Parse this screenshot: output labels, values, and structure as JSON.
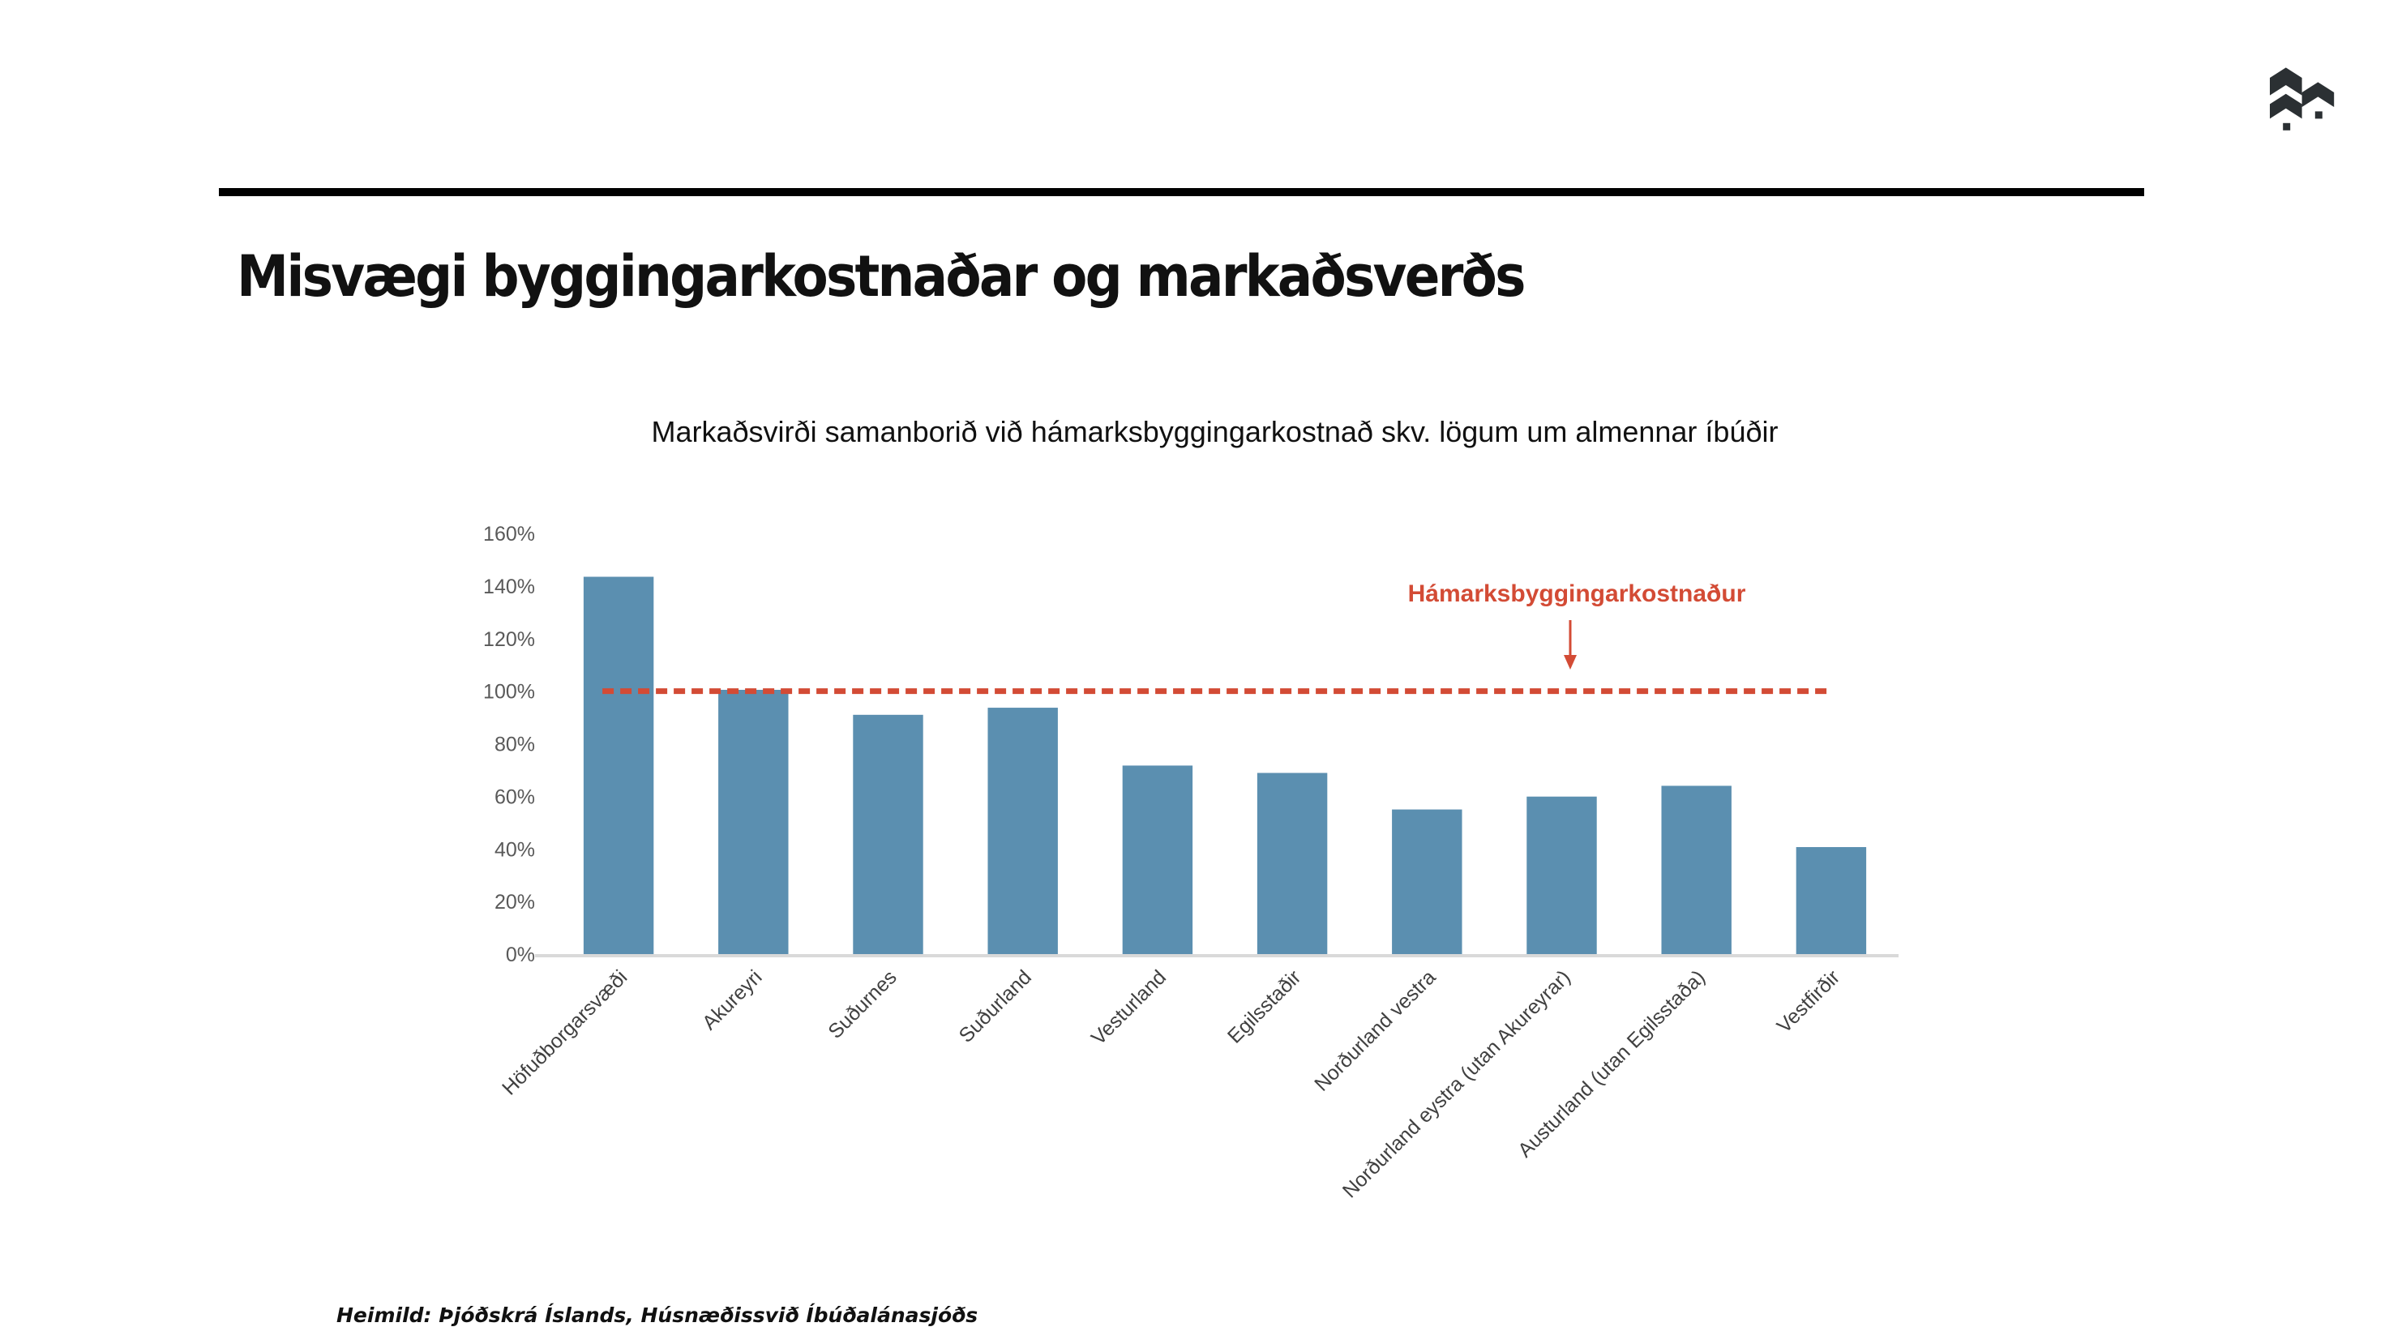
{
  "slide": {
    "heading": "Misvægi byggingarkostnaðar og markaðsverðs",
    "source": "Heimild: Þjóðskrá Íslands, Húsnæðissvið Íbúðalánasjóðs"
  },
  "chart_data": {
    "type": "bar",
    "title": "Markaðsvirði samanborið við hámarksbyggingarkostnað skv. lögum um almennar íbúðir",
    "categories": [
      "Höfuðborgarsvæði",
      "Akureyri",
      "Suðurnes",
      "Suðurland",
      "Vesturland",
      "Egilsstaðir",
      "Norðurland vestra",
      "Norðurland eystra (utan Akureyrar)",
      "Austurland (utan Egilsstaða)",
      "Vestfirðir"
    ],
    "values": [
      143.5,
      100.5,
      91,
      93.7,
      71.7,
      68.9,
      55,
      59.9,
      64,
      40.7
    ],
    "yticks": [
      "0%",
      "20%",
      "40%",
      "60%",
      "80%",
      "100%",
      "120%",
      "140%",
      "160%"
    ],
    "ylim": [
      0,
      160
    ],
    "reference_line": {
      "label": "Hámarksbyggingarkostnaður",
      "value": 100
    },
    "colors": {
      "bar": "#5b8fb0",
      "reference": "#d34b35",
      "axis": "#d9d9d9",
      "tick_text": "#595959"
    },
    "xlabel": "",
    "ylabel": "",
    "grid": false
  }
}
